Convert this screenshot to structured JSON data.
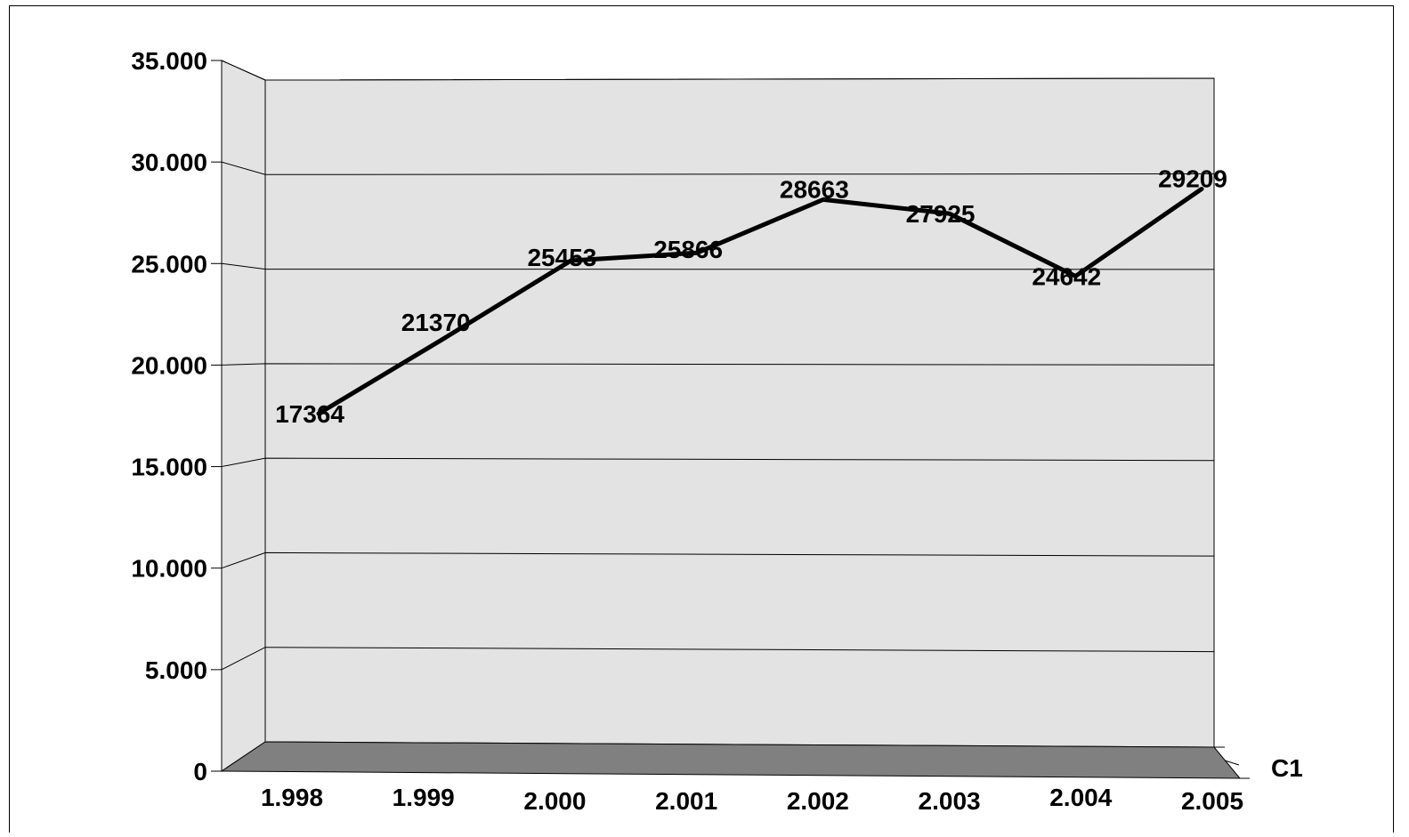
{
  "chart_data": {
    "type": "line",
    "title": "",
    "xlabel": "",
    "ylabel": "",
    "categories": [
      "1.998",
      "1.999",
      "2.000",
      "2.001",
      "2.002",
      "2.003",
      "2.004",
      "2.005"
    ],
    "series": [
      {
        "name": "C1",
        "values": [
          17364,
          21370,
          25453,
          25866,
          28663,
          27925,
          24642,
          29209
        ],
        "labels": [
          "17364",
          "21370",
          "25453",
          "25866",
          "28663",
          "27925",
          "24642",
          "29209"
        ],
        "color": "#000000"
      }
    ],
    "yticks": [
      "0",
      "5.000",
      "10.000",
      "15.000",
      "20.000",
      "25.000",
      "30.000",
      "35.000"
    ],
    "ylim": [
      0,
      35000
    ],
    "grid": true,
    "style": "3d",
    "colors": {
      "wall": "#e3e3e3",
      "floor": "#808080",
      "line": "#000000"
    }
  }
}
